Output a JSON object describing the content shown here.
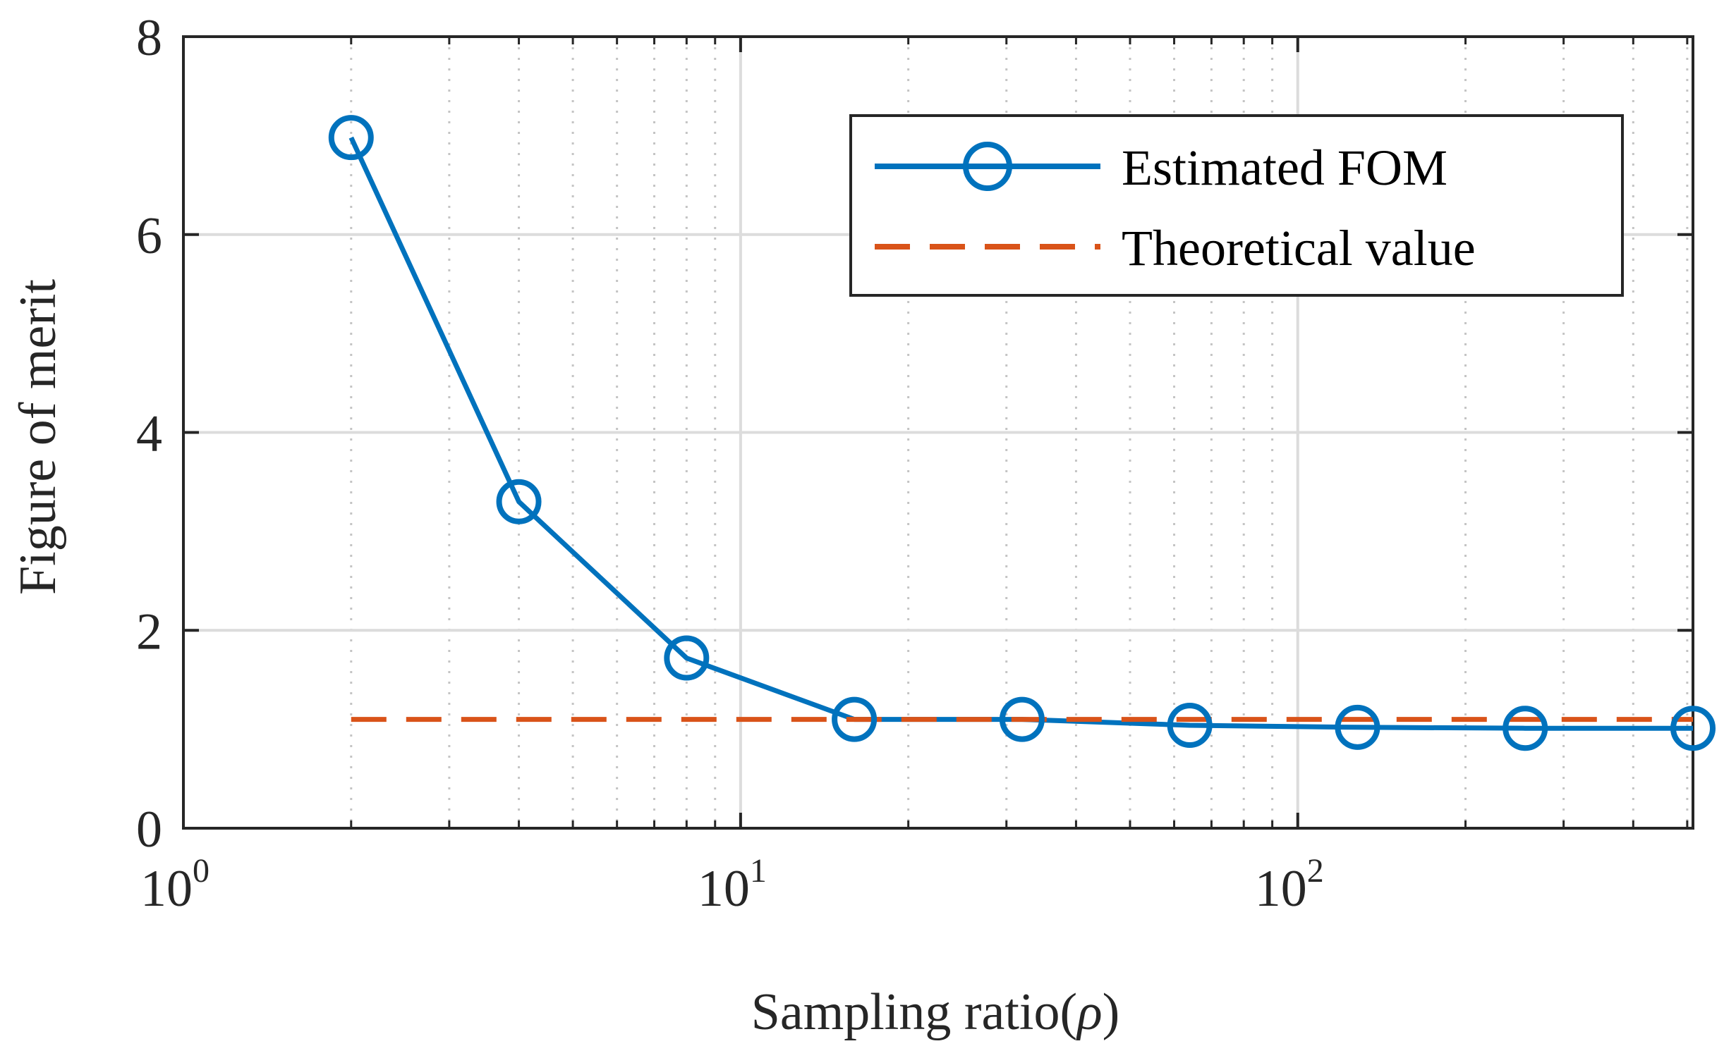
{
  "chart_data": {
    "type": "line",
    "x_scale": "log",
    "xlim": [
      1,
      512
    ],
    "ylim": [
      0,
      8
    ],
    "grid": true,
    "xlabel": {
      "prefix": "Sampling ratio(",
      "symbol": "ρ",
      "suffix": ")"
    },
    "ylabel": "Figure of merit",
    "x_ticks": [
      {
        "value": 1,
        "base": "10",
        "exp": "0"
      },
      {
        "value": 10,
        "base": "10",
        "exp": "1"
      },
      {
        "value": 100,
        "base": "10",
        "exp": "2"
      }
    ],
    "y_ticks": [
      {
        "value": 0,
        "label": "0"
      },
      {
        "value": 2,
        "label": "2"
      },
      {
        "value": 4,
        "label": "4"
      },
      {
        "value": 6,
        "label": "6"
      },
      {
        "value": 8,
        "label": "8"
      }
    ],
    "legend_position": "top-right",
    "series": [
      {
        "name": "Estimated FOM",
        "style": "solid",
        "marker": "circle",
        "color": "#0072BD",
        "x": [
          2,
          4,
          8,
          16,
          32,
          64,
          128,
          256,
          512
        ],
        "y": [
          6.98,
          3.3,
          1.72,
          1.1,
          1.1,
          1.04,
          1.02,
          1.01,
          1.01
        ]
      },
      {
        "name": "Theoretical value",
        "style": "dashed",
        "marker": "none",
        "color": "#D95319",
        "x": [
          2,
          512
        ],
        "y": [
          1.1,
          1.1
        ]
      }
    ]
  }
}
